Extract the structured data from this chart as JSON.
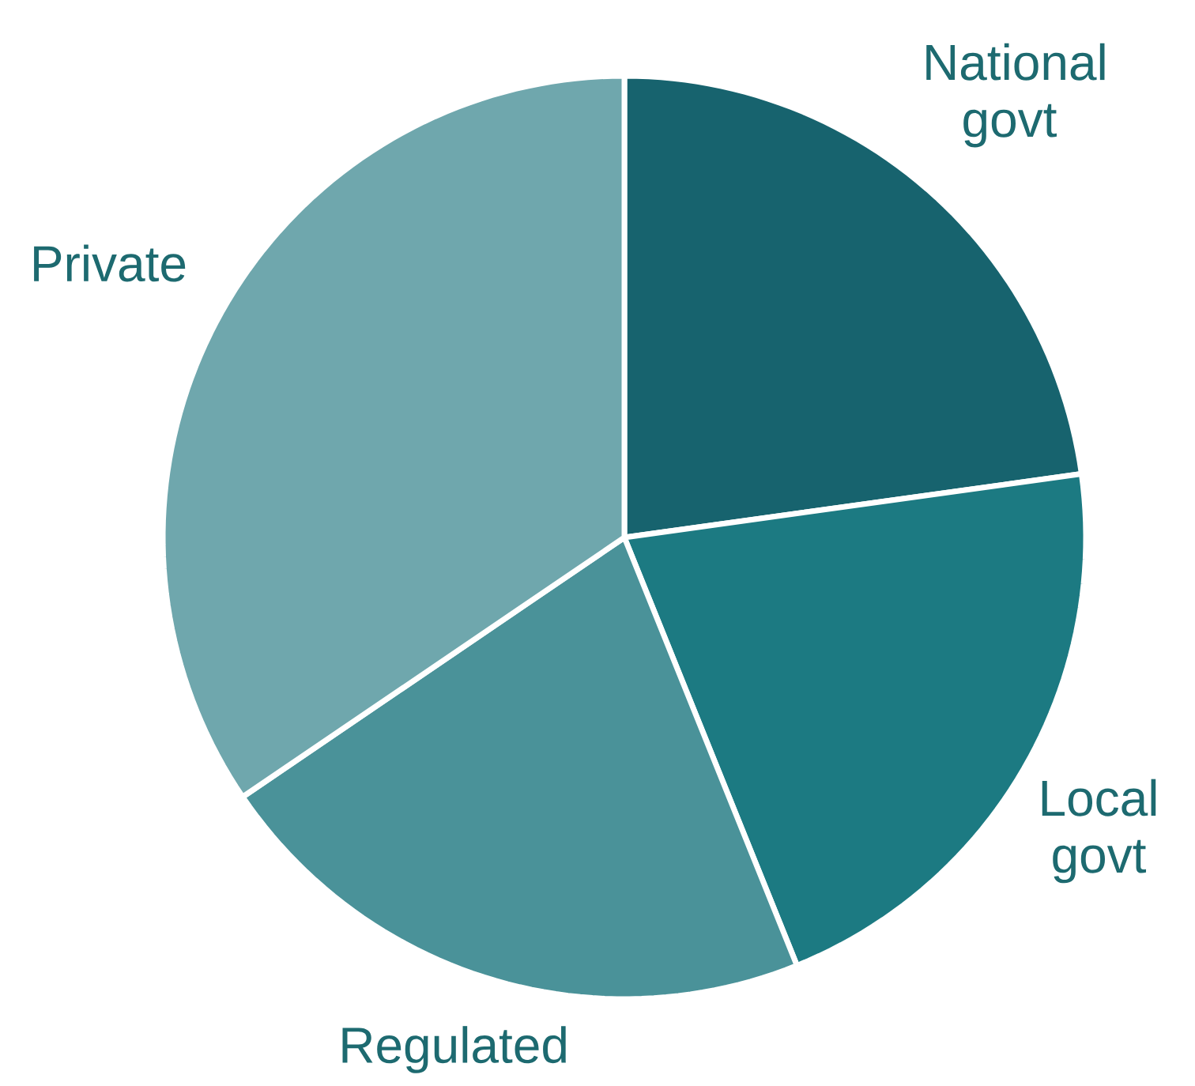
{
  "chart_data": {
    "type": "pie",
    "categories": [
      "National govt",
      "Local govt",
      "Regulated",
      "Private"
    ],
    "values": [
      22.8,
      21.1,
      21.6,
      34.5
    ],
    "colors": [
      "#17636e",
      "#1c7a82",
      "#4a9299",
      "#6fa7ad"
    ]
  }
}
